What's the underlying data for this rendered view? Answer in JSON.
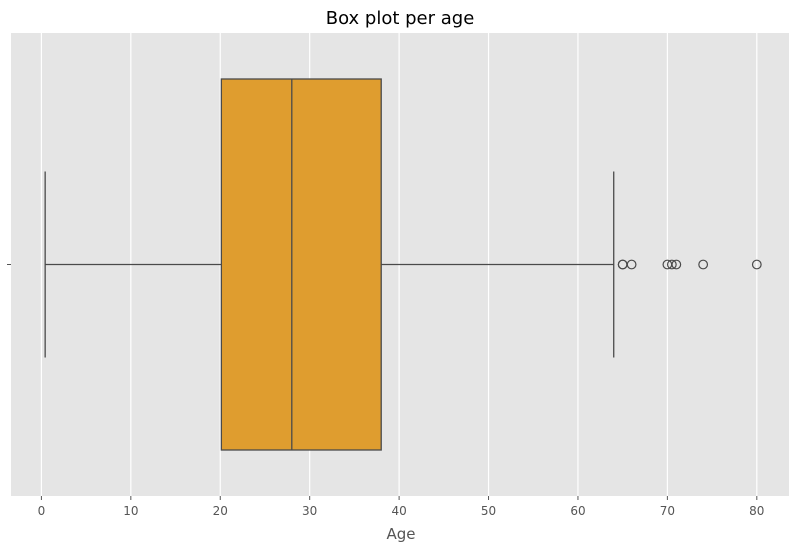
{
  "chart_data": {
    "type": "box",
    "title": "Box plot per age",
    "xlabel": "Age",
    "ylabel": "",
    "xlim": [
      -3.4,
      83.6
    ],
    "xticks": [
      0,
      10,
      20,
      30,
      40,
      50,
      60,
      70,
      80
    ],
    "grid": true,
    "orientation": "horizontal",
    "box": {
      "whisker_low": 0.42,
      "q1": 20.125,
      "median": 28.0,
      "q3": 38.0,
      "whisker_high": 64.0
    },
    "outliers": [
      65,
      65,
      66,
      70,
      70.5,
      71,
      74,
      80
    ]
  },
  "colors": {
    "plot_background": "#e5e5e5",
    "grid": "#ffffff",
    "box_fill": "#df9d2f",
    "box_edge": "#4a4a4a",
    "tick_text": "#555555"
  }
}
